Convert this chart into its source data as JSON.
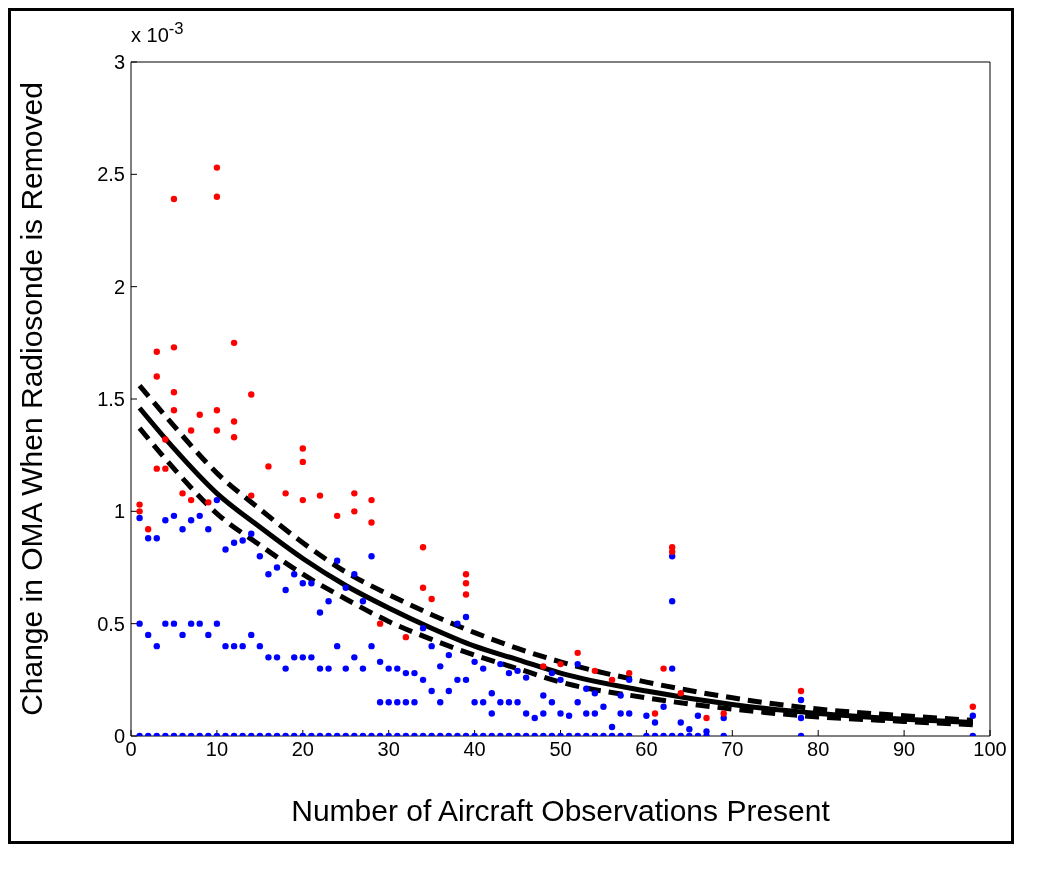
{
  "chart_data": {
    "type": "scatter",
    "xlabel": "Number of Aircraft Observations Present",
    "ylabel": "Change in OMA When Radiosonde is Removed",
    "annotations": [
      "x 10$^{-3}$"
    ],
    "xlim": [
      0,
      100
    ],
    "xticks": [
      0,
      10,
      20,
      30,
      40,
      50,
      60,
      70,
      80,
      90,
      100
    ],
    "ylim": [
      0,
      3
    ],
    "yticks": [
      0,
      0.5,
      1,
      1.5,
      2,
      2.5,
      3
    ],
    "grid": false,
    "legend": false,
    "marker": "circle",
    "series": [
      {
        "color": "#0000ff",
        "x": [
          1,
          1,
          1,
          2,
          2,
          2,
          3,
          3,
          3,
          4,
          4,
          4,
          5,
          5,
          5,
          6,
          6,
          6,
          7,
          7,
          7,
          8,
          8,
          8,
          9,
          9,
          9,
          10,
          10,
          10,
          11,
          11,
          11,
          12,
          12,
          12,
          13,
          13,
          13,
          14,
          14,
          14,
          15,
          15,
          15,
          16,
          16,
          16,
          17,
          17,
          17,
          18,
          18,
          18,
          19,
          19,
          19,
          20,
          20,
          20,
          21,
          21,
          21,
          22,
          22,
          22,
          23,
          23,
          23,
          24,
          24,
          24,
          25,
          25,
          25,
          26,
          26,
          26,
          27,
          27,
          27,
          28,
          28,
          28,
          29,
          29,
          29,
          30,
          30,
          30,
          31,
          31,
          31,
          32,
          32,
          32,
          33,
          33,
          33,
          34,
          34,
          34,
          35,
          35,
          35,
          36,
          36,
          36,
          37,
          37,
          37,
          38,
          38,
          38,
          39,
          39,
          39,
          40,
          40,
          40,
          41,
          41,
          41,
          42,
          42,
          42,
          43,
          43,
          43,
          44,
          44,
          44,
          45,
          45,
          45,
          46,
          46,
          46,
          47,
          47,
          48,
          48,
          48,
          49,
          49,
          49,
          50,
          50,
          50,
          51,
          51,
          52,
          52,
          52,
          53,
          53,
          53,
          54,
          54,
          54,
          55,
          55,
          56,
          56,
          57,
          57,
          57,
          58,
          58,
          58,
          60,
          60,
          61,
          61,
          62,
          62,
          63,
          63,
          63,
          63,
          64,
          64,
          65,
          65,
          66,
          66,
          67,
          67,
          69,
          69,
          78,
          78,
          78,
          98,
          98
        ],
        "values": [
          0.97,
          0.5,
          0,
          0.88,
          0.45,
          0,
          0.88,
          0.4,
          0,
          0.96,
          0.5,
          0,
          0.98,
          0.5,
          0,
          0.92,
          0.45,
          0,
          0.96,
          0.5,
          0,
          0.98,
          0.5,
          0,
          0.92,
          0.45,
          0,
          1.05,
          0.5,
          0,
          0.83,
          0.4,
          0,
          0.86,
          0.4,
          0,
          0.87,
          0.4,
          0,
          0.9,
          0.45,
          0,
          0.8,
          0.4,
          0,
          0.72,
          0.35,
          0,
          0.75,
          0.35,
          0,
          0.65,
          0.3,
          0,
          0.72,
          0.35,
          0,
          0.68,
          0.35,
          0,
          0.68,
          0.35,
          0,
          0.55,
          0.3,
          0,
          0.6,
          0.3,
          0,
          0.78,
          0.4,
          0,
          0.66,
          0.3,
          0,
          0.72,
          0.35,
          0,
          0.6,
          0.3,
          0,
          0.8,
          0.4,
          0,
          0.33,
          0.15,
          0,
          0.3,
          0.15,
          0,
          0.3,
          0.15,
          0,
          0.28,
          0.15,
          0,
          0.28,
          0.15,
          0,
          0.48,
          0.25,
          0,
          0.4,
          0.2,
          0,
          0.31,
          0.15,
          0,
          0.36,
          0.2,
          0,
          0.5,
          0.25,
          0,
          0.53,
          0.25,
          0,
          0.33,
          0.15,
          0,
          0.3,
          0.15,
          0,
          0.19,
          0.1,
          0,
          0.32,
          0.15,
          0,
          0.28,
          0.15,
          0,
          0.29,
          0.15,
          0,
          0.26,
          0.1,
          0,
          0.08,
          0,
          0.18,
          0.1,
          0,
          0.28,
          0.15,
          0,
          0.25,
          0.1,
          0,
          0.09,
          0,
          0.32,
          0.15,
          0,
          0.21,
          0.1,
          0,
          0.19,
          0.1,
          0,
          0.13,
          0,
          0.04,
          0,
          0.18,
          0.1,
          0,
          0.25,
          0.1,
          0,
          0.09,
          0,
          0.06,
          0,
          0.13,
          0,
          0.8,
          0.6,
          0.3,
          0,
          0.06,
          0,
          0.03,
          0,
          0.09,
          0,
          0.02,
          0,
          0.08,
          0,
          0.16,
          0.08,
          0,
          0.09,
          0
        ]
      },
      {
        "color": "#ff0000",
        "x": [
          1,
          1,
          2,
          3,
          3,
          3,
          4,
          4,
          5,
          5,
          5,
          5,
          6,
          7,
          7,
          8,
          9,
          10,
          10,
          10,
          10,
          12,
          12,
          12,
          14,
          14,
          16,
          18,
          20,
          20,
          20,
          22,
          24,
          26,
          26,
          28,
          28,
          29,
          32,
          34,
          34,
          35,
          39,
          39,
          39,
          48,
          50,
          52,
          54,
          56,
          58,
          61,
          62,
          63,
          63,
          64,
          67,
          69,
          78,
          98
        ],
        "values": [
          1.03,
          1.0,
          0.92,
          1.71,
          1.6,
          1.19,
          1.32,
          1.19,
          2.39,
          1.73,
          1.53,
          1.45,
          1.08,
          1.36,
          1.05,
          1.43,
          1.04,
          2.53,
          2.4,
          1.45,
          1.36,
          1.75,
          1.4,
          1.33,
          1.52,
          1.07,
          1.2,
          1.08,
          1.28,
          1.22,
          1.05,
          1.07,
          0.98,
          1.08,
          1.0,
          1.05,
          0.95,
          0.5,
          0.44,
          0.84,
          0.66,
          0.61,
          0.72,
          0.68,
          0.63,
          0.31,
          0.32,
          0.37,
          0.29,
          0.25,
          0.28,
          0.1,
          0.3,
          0.84,
          0.82,
          0.19,
          0.08,
          0.1,
          0.2,
          0.13
        ]
      },
      {
        "type": "line",
        "color": "#000000",
        "marker": "none",
        "line_style": "solid",
        "x": [
          1,
          5,
          10,
          15,
          20,
          25,
          30,
          35,
          40,
          45,
          50,
          60,
          70,
          80,
          90,
          98
        ],
        "values": [
          1.46,
          1.28,
          1.08,
          0.93,
          0.79,
          0.67,
          0.57,
          0.48,
          0.4,
          0.34,
          0.28,
          0.2,
          0.14,
          0.1,
          0.075,
          0.06
        ]
      },
      {
        "type": "line",
        "color": "#000000",
        "marker": "none",
        "line_style": "dashed",
        "x": [
          1,
          5,
          10,
          15,
          20,
          25,
          30,
          35,
          40,
          45,
          50,
          60,
          70,
          80,
          90,
          98
        ],
        "values": [
          1.56,
          1.38,
          1.17,
          1.01,
          0.86,
          0.73,
          0.63,
          0.54,
          0.46,
          0.39,
          0.33,
          0.24,
          0.17,
          0.12,
          0.09,
          0.07
        ]
      },
      {
        "type": "line",
        "color": "#000000",
        "marker": "none",
        "line_style": "dashed",
        "x": [
          1,
          5,
          10,
          15,
          20,
          25,
          30,
          35,
          40,
          45,
          50,
          60,
          70,
          80,
          90,
          98
        ],
        "values": [
          1.37,
          1.19,
          0.99,
          0.85,
          0.72,
          0.61,
          0.51,
          0.43,
          0.36,
          0.3,
          0.24,
          0.17,
          0.12,
          0.085,
          0.065,
          0.05
        ]
      }
    ]
  }
}
